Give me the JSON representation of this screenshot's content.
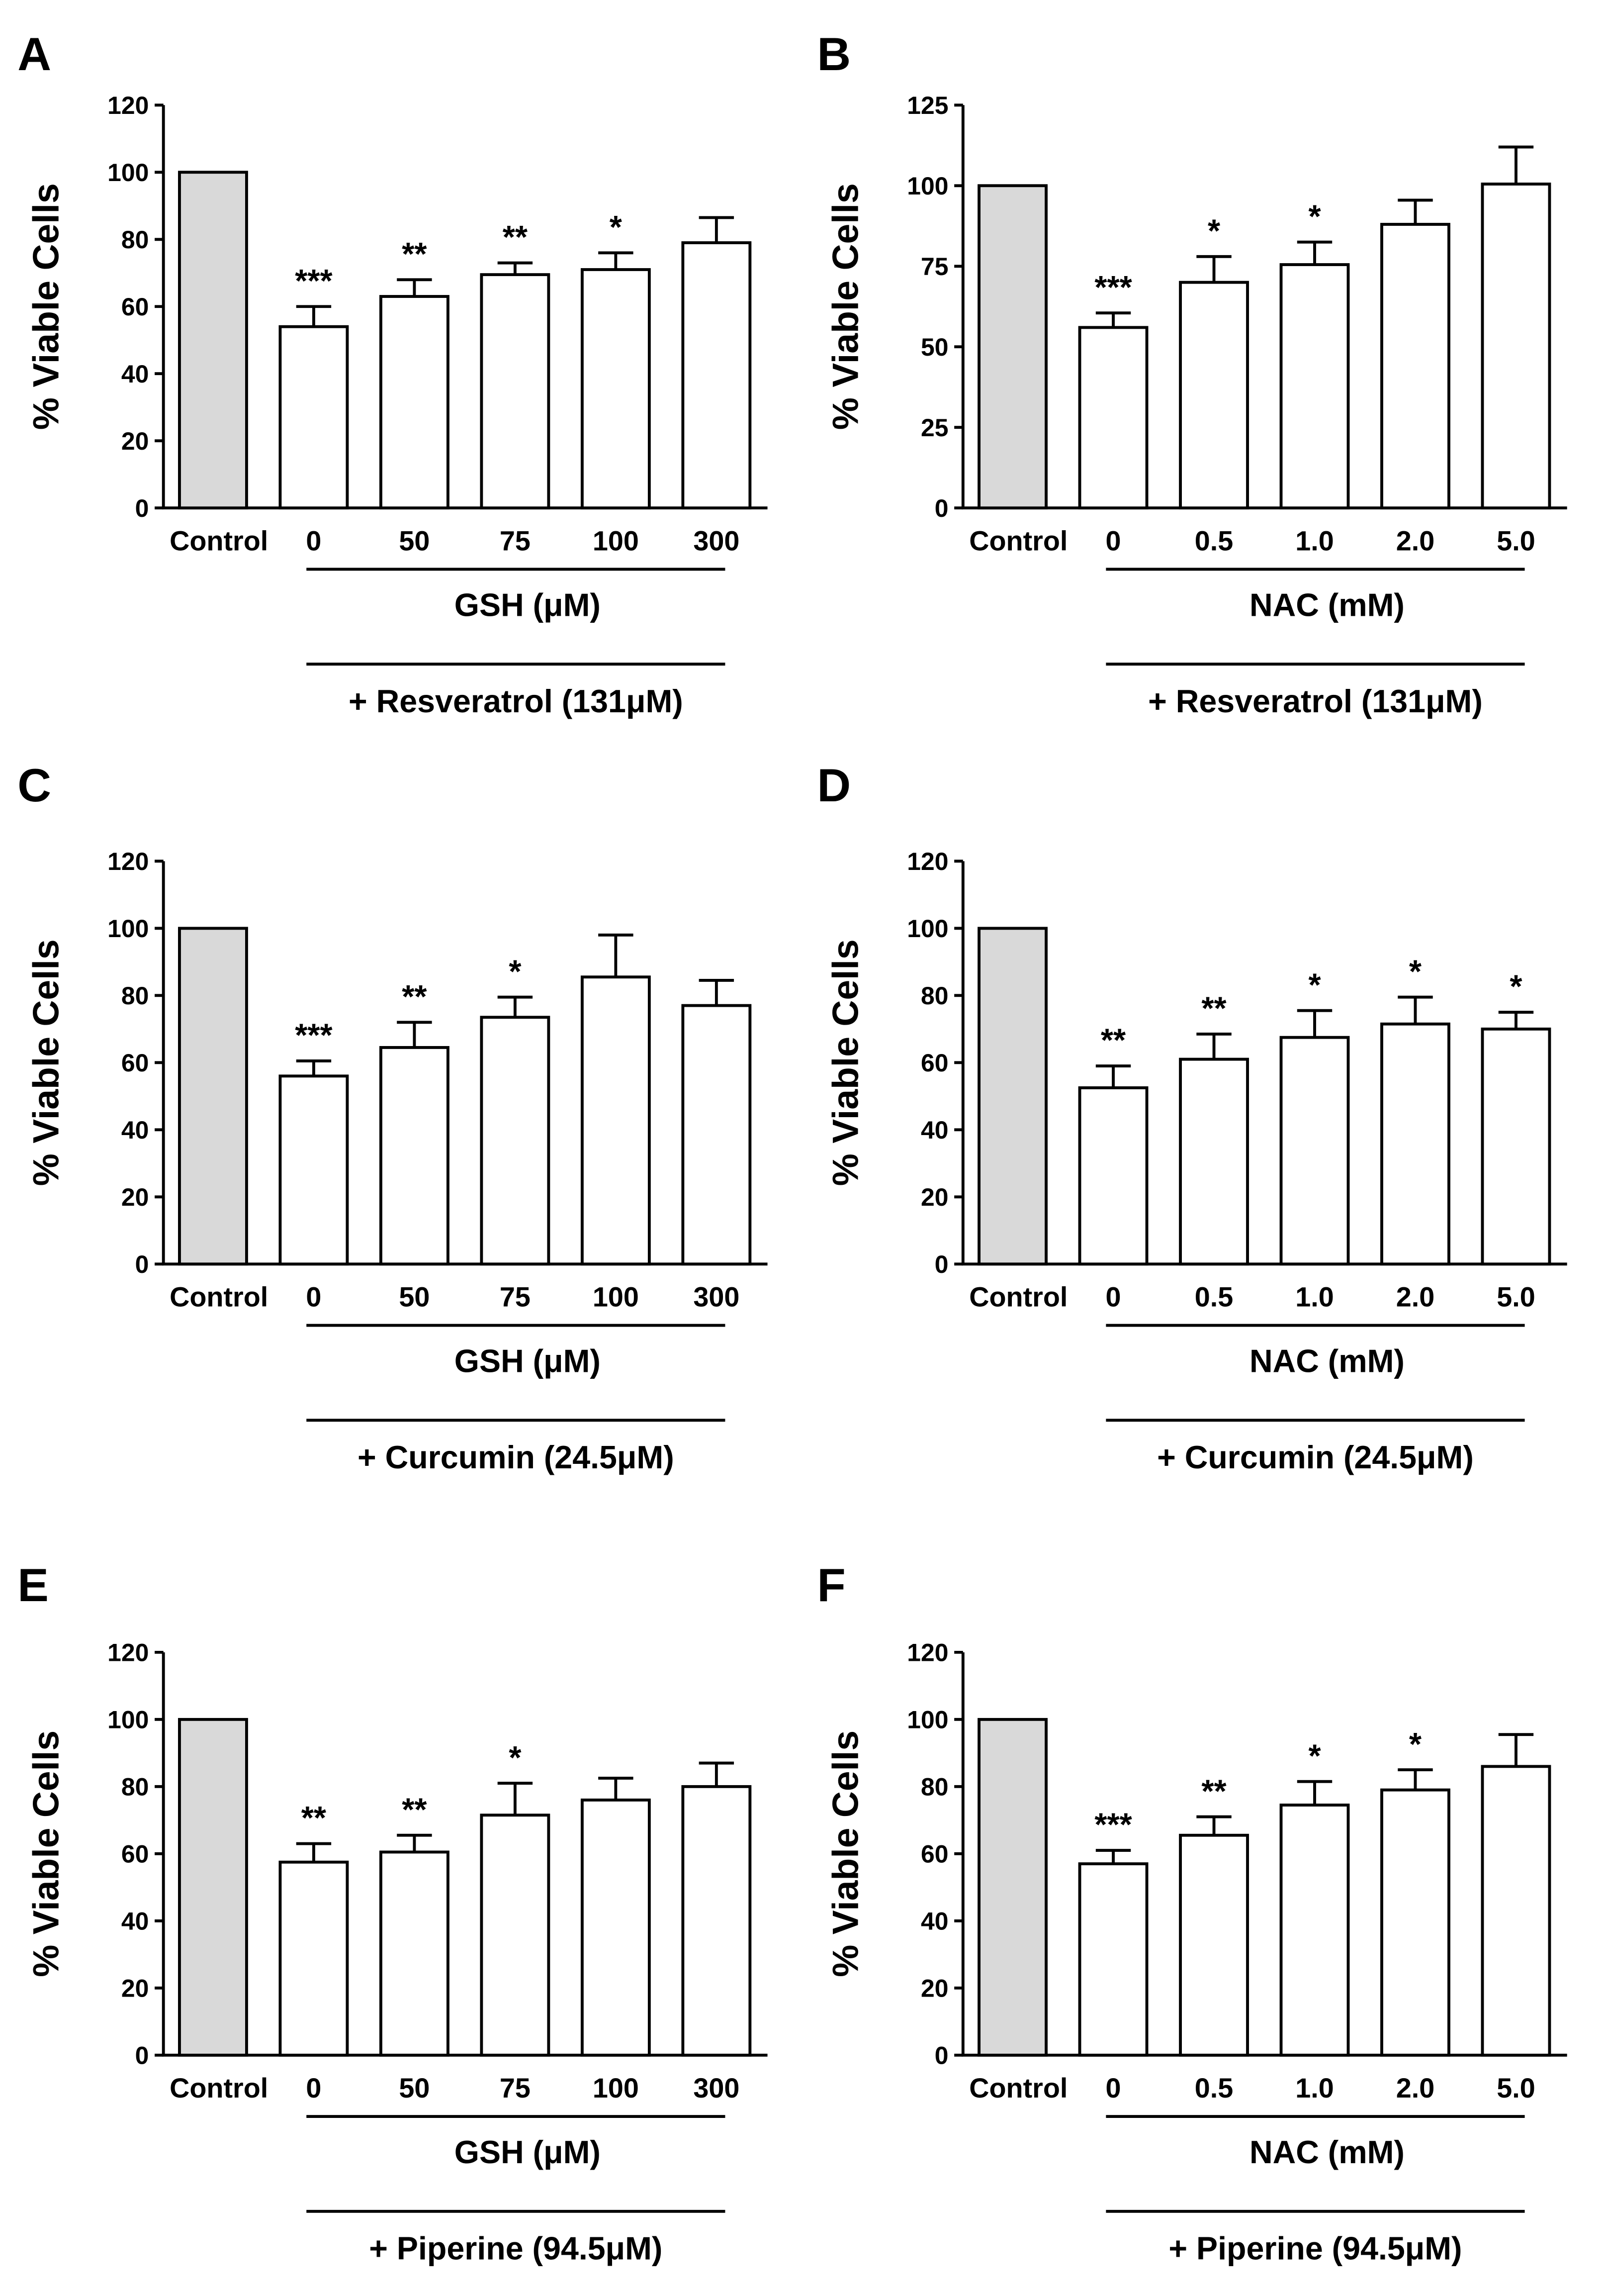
{
  "colors": {
    "control_fill": "#d9d9d9",
    "bar_fill": "#ffffff",
    "stroke": "#000000"
  },
  "chart_data": [
    {
      "panel": "A",
      "type": "bar",
      "ylabel": "% Viable Cells",
      "ylim": [
        0,
        120
      ],
      "yticks": [
        "0",
        "20",
        "40",
        "60",
        "80",
        "100",
        "120"
      ],
      "categories": [
        "Control",
        "0",
        "50",
        "75",
        "100",
        "300"
      ],
      "values": [
        100,
        54,
        63,
        69.5,
        71,
        79
      ],
      "errors": [
        0,
        6,
        5,
        3.5,
        5,
        7.5
      ],
      "significance": [
        "",
        "***",
        "**",
        "**",
        "*",
        ""
      ],
      "group_label": "GSH (μM)",
      "treatment_label": "+ Resveratrol (131μM)"
    },
    {
      "panel": "B",
      "type": "bar",
      "ylabel": "% Viable Cells",
      "ylim": [
        0,
        125
      ],
      "yticks": [
        "0",
        "25",
        "50",
        "75",
        "100",
        "125"
      ],
      "categories": [
        "Control",
        "0",
        "0.5",
        "1.0",
        "2.0",
        "5.0"
      ],
      "values": [
        100,
        56,
        70,
        75.5,
        88,
        100.5
      ],
      "errors": [
        0,
        4.5,
        8,
        7,
        7.5,
        11.5
      ],
      "significance": [
        "",
        "***",
        "*",
        "*",
        "",
        ""
      ],
      "group_label": "NAC (mM)",
      "treatment_label": "+ Resveratrol (131μM)"
    },
    {
      "panel": "C",
      "type": "bar",
      "ylabel": "% Viable Cells",
      "ylim": [
        0,
        120
      ],
      "yticks": [
        "0",
        "20",
        "40",
        "60",
        "80",
        "100",
        "120"
      ],
      "categories": [
        "Control",
        "0",
        "50",
        "75",
        "100",
        "300"
      ],
      "values": [
        100,
        56,
        64.5,
        73.5,
        85.5,
        77
      ],
      "errors": [
        0,
        4.5,
        7.5,
        6,
        12.5,
        7.5
      ],
      "significance": [
        "",
        "***",
        "**",
        "*",
        "",
        ""
      ],
      "group_label": "GSH (μM)",
      "treatment_label": "+ Curcumin (24.5μM)"
    },
    {
      "panel": "D",
      "type": "bar",
      "ylabel": "% Viable Cells",
      "ylim": [
        0,
        120
      ],
      "yticks": [
        "0",
        "20",
        "40",
        "60",
        "80",
        "100",
        "120"
      ],
      "categories": [
        "Control",
        "0",
        "0.5",
        "1.0",
        "2.0",
        "5.0"
      ],
      "values": [
        100,
        52.5,
        61,
        67.5,
        71.5,
        70
      ],
      "errors": [
        0,
        6.5,
        7.5,
        8,
        8,
        5
      ],
      "significance": [
        "",
        "**",
        "**",
        "*",
        "*",
        "*"
      ],
      "group_label": "NAC (mM)",
      "treatment_label": "+ Curcumin (24.5μM)"
    },
    {
      "panel": "E",
      "type": "bar",
      "ylabel": "% Viable Cells",
      "ylim": [
        0,
        120
      ],
      "yticks": [
        "0",
        "20",
        "40",
        "60",
        "80",
        "100",
        "120"
      ],
      "categories": [
        "Control",
        "0",
        "50",
        "75",
        "100",
        "300"
      ],
      "values": [
        100,
        57.5,
        60.5,
        71.5,
        76,
        80
      ],
      "errors": [
        0,
        5.5,
        5,
        9.5,
        6.5,
        7
      ],
      "significance": [
        "",
        "**",
        "**",
        "*",
        "",
        ""
      ],
      "group_label": "GSH (μM)",
      "treatment_label": "+ Piperine (94.5μM)"
    },
    {
      "panel": "F",
      "type": "bar",
      "ylabel": "% Viable Cells",
      "ylim": [
        0,
        120
      ],
      "yticks": [
        "0",
        "20",
        "40",
        "60",
        "80",
        "100",
        "120"
      ],
      "categories": [
        "Control",
        "0",
        "0.5",
        "1.0",
        "2.0",
        "5.0"
      ],
      "values": [
        100,
        57,
        65.5,
        74.5,
        79,
        86
      ],
      "errors": [
        0,
        4,
        5.5,
        7,
        6,
        9.5
      ],
      "significance": [
        "",
        "***",
        "**",
        "*",
        "*",
        ""
      ],
      "group_label": "NAC (mM)",
      "treatment_label": "+ Piperine (94.5μM)"
    }
  ]
}
